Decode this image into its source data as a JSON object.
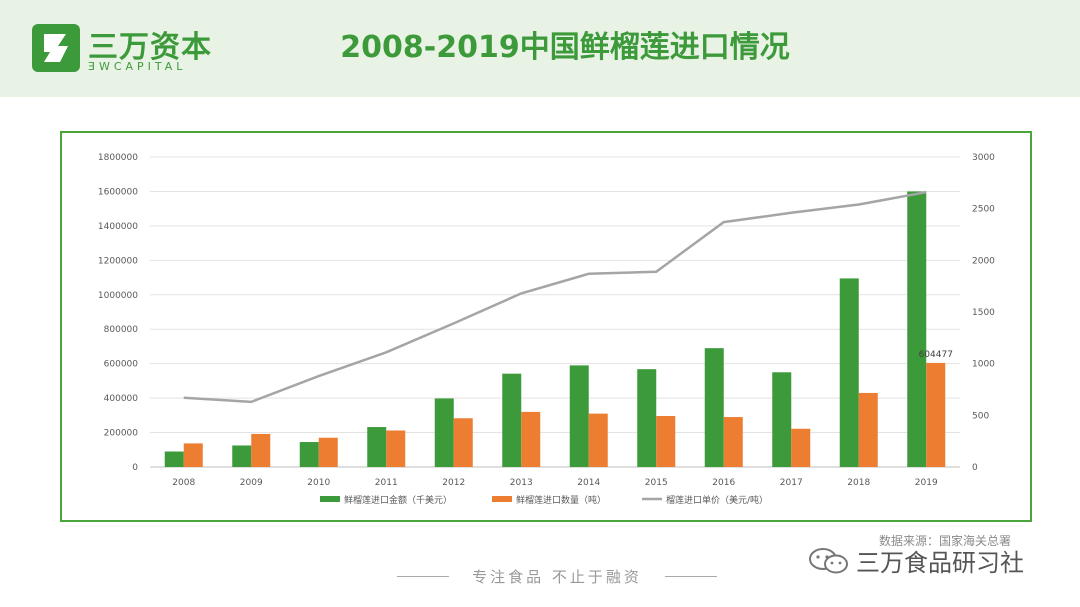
{
  "header": {
    "logo_cn": "三万资本",
    "logo_en": "ƎWCAPITAL",
    "title": "2008-2019中国鲜榴莲进口情况"
  },
  "chart_data": {
    "type": "bar",
    "categories": [
      "2008",
      "2009",
      "2010",
      "2011",
      "2012",
      "2013",
      "2014",
      "2015",
      "2016",
      "2017",
      "2018",
      "2019"
    ],
    "series": [
      {
        "name": "鲜榴莲进口金额（千美元）",
        "kind": "bar",
        "axis": "left",
        "color": "#3d9a3b",
        "values": [
          90000,
          125000,
          145000,
          232000,
          398000,
          542000,
          590000,
          568000,
          690000,
          550000,
          1095000,
          1600000
        ]
      },
      {
        "name": "鲜榴莲进口数量（吨）",
        "kind": "bar",
        "axis": "left",
        "color": "#ed7d31",
        "values": [
          137000,
          192000,
          170000,
          212000,
          283000,
          320000,
          310000,
          296000,
          290000,
          222000,
          430000,
          604477
        ]
      },
      {
        "name": "榴莲进口单价（美元/吨）",
        "kind": "line",
        "axis": "right",
        "color": "#a5a5a5",
        "values": [
          670,
          630,
          880,
          1110,
          1390,
          1680,
          1870,
          1890,
          2370,
          2460,
          2540,
          2660
        ]
      }
    ],
    "left_ticks": [
      "0",
      "200000",
      "400000",
      "600000",
      "800000",
      "1000000",
      "1200000",
      "1400000",
      "1600000",
      "1800000"
    ],
    "right_ticks": [
      "0",
      "500",
      "1000",
      "1500",
      "2000",
      "2500",
      "3000"
    ],
    "ylim_left": [
      0,
      1800000
    ],
    "ylim_right": [
      0,
      3000
    ],
    "data_label": {
      "series": 1,
      "index": 11,
      "text": "604477"
    },
    "legend_position": "bottom"
  },
  "footer": {
    "source": "数据来源：国家海关总署",
    "watermark": "三万食品研习社",
    "slogan": "专注食品  不止于融资"
  }
}
